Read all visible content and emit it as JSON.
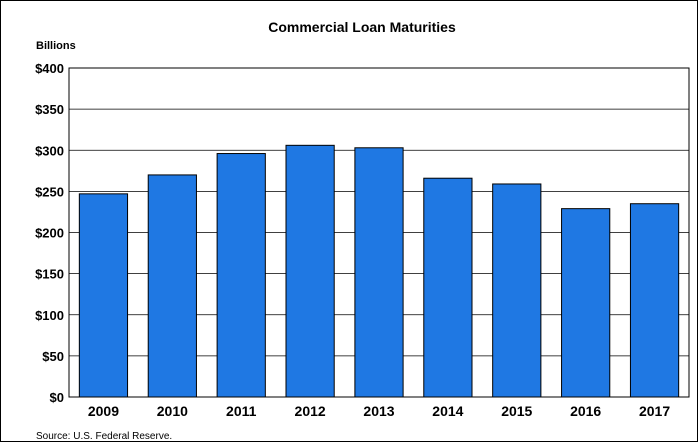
{
  "chart_data": {
    "type": "bar",
    "title": "Commercial Loan Maturities",
    "unit_label": "Billions",
    "categories": [
      "2009",
      "2010",
      "2011",
      "2012",
      "2013",
      "2014",
      "2015",
      "2016",
      "2017"
    ],
    "values": [
      247,
      270,
      296,
      306,
      303,
      266,
      259,
      229,
      235
    ],
    "ylim": [
      0,
      400
    ],
    "yticks": [
      "$0",
      "$50",
      "$100",
      "$150",
      "$200",
      "$250",
      "$300",
      "$350",
      "$400"
    ],
    "grid": true,
    "legend": "none",
    "bar_color": "#1F78E3",
    "source": "Source:  U.S. Federal Reserve."
  }
}
